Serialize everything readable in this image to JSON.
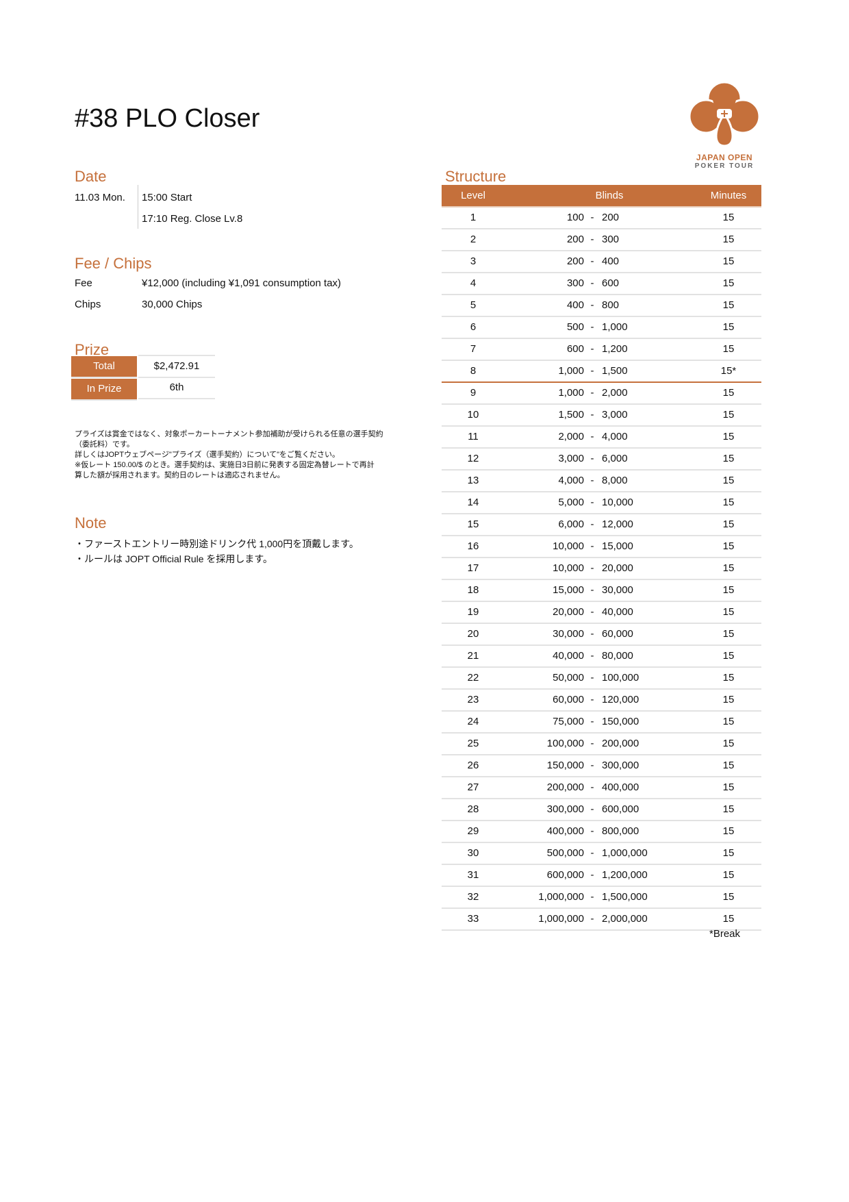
{
  "title": "#38 PLO Closer",
  "logo": {
    "line1": "JAPAN OPEN",
    "line2": "POKER TOUR",
    "color": "#C5703B"
  },
  "date": {
    "heading": "Date",
    "day": "11.03 Mon.",
    "start": "15:00 Start",
    "reg_close": "17:10 Reg. Close Lv.8"
  },
  "fee_chips": {
    "heading": "Fee / Chips",
    "fee_label": "Fee",
    "fee_value": "¥12,000 (including ¥1,091 consumption tax)",
    "chips_label": "Chips",
    "chips_value": "30,000 Chips"
  },
  "prize": {
    "heading": "Prize",
    "total_label": "Total",
    "total_value": "$2,472.91",
    "in_prize_label": "In Prize",
    "in_prize_value": "6th"
  },
  "disclaimer": [
    "プライズは賞金ではなく、対象ポーカートーナメント参加補助が受けられる任意の選手契約",
    "（委託料）です。",
    "詳しくはJOPTウェブページ\"プライズ（選手契約）について\"をご覧ください。",
    "※仮レート 150.00/$ のとき。選手契約は、実施日3日前に発表する固定為替レートで再計",
    "算した額が採用されます。契約日のレートは適応されません。"
  ],
  "note": {
    "heading": "Note",
    "lines": [
      "・ファーストエントリー時別途ドリンク代 1,000円を頂戴します。",
      "・ルールは JOPT Official Rule を採用します。"
    ]
  },
  "structure": {
    "heading": "Structure",
    "columns": [
      "Level",
      "Blinds",
      "Minutes"
    ],
    "break_after_level": 8,
    "footnote": "*Break",
    "rows": [
      [
        "1",
        "100",
        "200",
        "15"
      ],
      [
        "2",
        "200",
        "300",
        "15"
      ],
      [
        "3",
        "200",
        "400",
        "15"
      ],
      [
        "4",
        "300",
        "600",
        "15"
      ],
      [
        "5",
        "400",
        "800",
        "15"
      ],
      [
        "6",
        "500",
        "1,000",
        "15"
      ],
      [
        "7",
        "600",
        "1,200",
        "15"
      ],
      [
        "8",
        "1,000",
        "1,500",
        "15*"
      ],
      [
        "9",
        "1,000",
        "2,000",
        "15"
      ],
      [
        "10",
        "1,500",
        "3,000",
        "15"
      ],
      [
        "11",
        "2,000",
        "4,000",
        "15"
      ],
      [
        "12",
        "3,000",
        "6,000",
        "15"
      ],
      [
        "13",
        "4,000",
        "8,000",
        "15"
      ],
      [
        "14",
        "5,000",
        "10,000",
        "15"
      ],
      [
        "15",
        "6,000",
        "12,000",
        "15"
      ],
      [
        "16",
        "10,000",
        "15,000",
        "15"
      ],
      [
        "17",
        "10,000",
        "20,000",
        "15"
      ],
      [
        "18",
        "15,000",
        "30,000",
        "15"
      ],
      [
        "19",
        "20,000",
        "40,000",
        "15"
      ],
      [
        "20",
        "30,000",
        "60,000",
        "15"
      ],
      [
        "21",
        "40,000",
        "80,000",
        "15"
      ],
      [
        "22",
        "50,000",
        "100,000",
        "15"
      ],
      [
        "23",
        "60,000",
        "120,000",
        "15"
      ],
      [
        "24",
        "75,000",
        "150,000",
        "15"
      ],
      [
        "25",
        "100,000",
        "200,000",
        "15"
      ],
      [
        "26",
        "150,000",
        "300,000",
        "15"
      ],
      [
        "27",
        "200,000",
        "400,000",
        "15"
      ],
      [
        "28",
        "300,000",
        "600,000",
        "15"
      ],
      [
        "29",
        "400,000",
        "800,000",
        "15"
      ],
      [
        "30",
        "500,000",
        "1,000,000",
        "15"
      ],
      [
        "31",
        "600,000",
        "1,200,000",
        "15"
      ],
      [
        "32",
        "1,000,000",
        "1,500,000",
        "15"
      ],
      [
        "33",
        "1,000,000",
        "2,000,000",
        "15"
      ]
    ]
  }
}
